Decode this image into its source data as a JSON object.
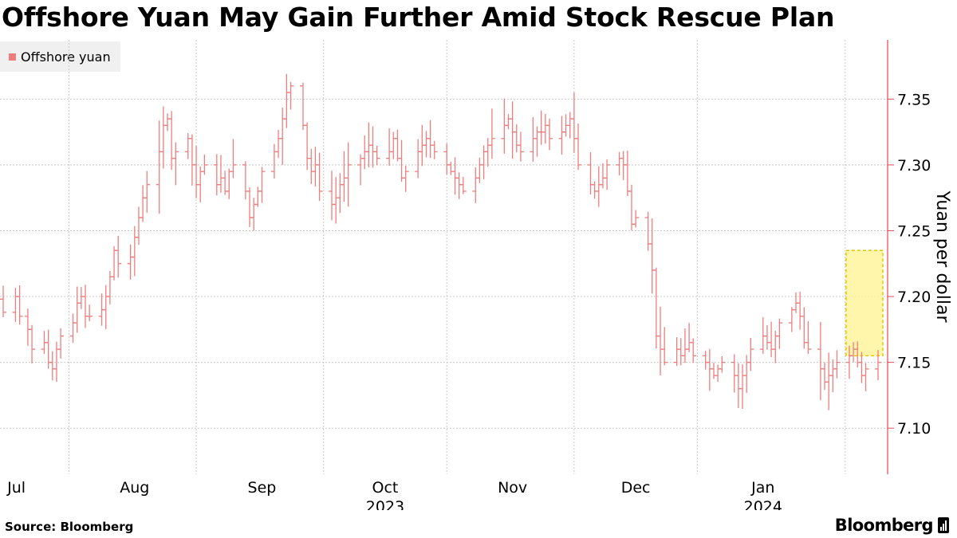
{
  "title": "Offshore Yuan May Gain Further Amid Stock Rescue Plan",
  "source": "Source: Bloomberg",
  "brand": "Bloomberg",
  "brand_icon": "terminal-icon",
  "colors": {
    "series": "#f07d7d",
    "axis": "#e8484f",
    "grid": "#c8c8c8",
    "highlight_fill": "#fff59d",
    "highlight_border": "#e3c800",
    "legend_bg": "#f0f0f0"
  },
  "chart_data": {
    "type": "ohlc",
    "title": "Offshore Yuan May Gain Further Amid Stock Rescue Plan",
    "series_name": "Offshore yuan",
    "ylabel": "Yuan per dollar",
    "ylim": [
      7.065,
      7.395
    ],
    "yticks": [
      "7.10",
      "7.15",
      "7.20",
      "7.25",
      "7.30",
      "7.35"
    ],
    "xlim": [
      "2023-06-30",
      "2024-01-29"
    ],
    "xticks": [
      {
        "date": "2023-07-01",
        "label": "Jul"
      },
      {
        "date": "2023-08-01",
        "label": "Aug"
      },
      {
        "date": "2023-09-01",
        "label": "Sep"
      },
      {
        "date": "2023-10-01",
        "label": "Oct"
      },
      {
        "date": "2023-11-01",
        "label": "Nov"
      },
      {
        "date": "2023-12-01",
        "label": "Dec"
      },
      {
        "date": "2024-01-01",
        "label": "Jan"
      }
    ],
    "year_labels": [
      {
        "date": "2023-10-01",
        "label": "2023"
      },
      {
        "date": "2024-01-01",
        "label": "2024"
      }
    ],
    "gridlines": true,
    "legend": "top-left",
    "highlight": {
      "from": "2024-01-22",
      "to": "2024-01-29",
      "low": 7.155,
      "high": 7.235
    },
    "anchors": [
      [
        "2023-06-30",
        7.188
      ],
      [
        "2023-07-03",
        7.2
      ],
      [
        "2023-07-04",
        7.185
      ],
      [
        "2023-07-06",
        7.175
      ],
      [
        "2023-07-07",
        7.16
      ],
      [
        "2023-07-10",
        7.165
      ],
      [
        "2023-07-11",
        7.15
      ],
      [
        "2023-07-12",
        7.145
      ],
      [
        "2023-07-13",
        7.16
      ],
      [
        "2023-07-14",
        7.17
      ],
      [
        "2023-07-17",
        7.18
      ],
      [
        "2023-07-18",
        7.195
      ],
      [
        "2023-07-19",
        7.2
      ],
      [
        "2023-07-20",
        7.185
      ],
      [
        "2023-07-21",
        7.185
      ],
      [
        "2023-07-24",
        7.19
      ],
      [
        "2023-07-25",
        7.2
      ],
      [
        "2023-07-26",
        7.215
      ],
      [
        "2023-07-27",
        7.235
      ],
      [
        "2023-07-28",
        7.225
      ],
      [
        "2023-07-31",
        7.23
      ],
      [
        "2023-08-01",
        7.245
      ],
      [
        "2023-08-02",
        7.26
      ],
      [
        "2023-08-03",
        7.275
      ],
      [
        "2023-08-04",
        7.285
      ],
      [
        "2023-08-07",
        7.31
      ],
      [
        "2023-08-08",
        7.33
      ],
      [
        "2023-08-09",
        7.335
      ],
      [
        "2023-08-10",
        7.305
      ],
      [
        "2023-08-11",
        7.31
      ],
      [
        "2023-08-14",
        7.32
      ],
      [
        "2023-08-15",
        7.3
      ],
      [
        "2023-08-16",
        7.285
      ],
      [
        "2023-08-17",
        7.295
      ],
      [
        "2023-08-18",
        7.3
      ],
      [
        "2023-08-21",
        7.285
      ],
      [
        "2023-08-22",
        7.29
      ],
      [
        "2023-08-23",
        7.28
      ],
      [
        "2023-08-24",
        7.295
      ],
      [
        "2023-08-25",
        7.3
      ],
      [
        "2023-08-28",
        7.28
      ],
      [
        "2023-08-29",
        7.26
      ],
      [
        "2023-08-30",
        7.27
      ],
      [
        "2023-08-31",
        7.28
      ],
      [
        "2023-09-01",
        7.295
      ],
      [
        "2023-09-04",
        7.31
      ],
      [
        "2023-09-05",
        7.32
      ],
      [
        "2023-09-06",
        7.335
      ],
      [
        "2023-09-07",
        7.355
      ],
      [
        "2023-09-08",
        7.36
      ],
      [
        "2023-09-11",
        7.33
      ],
      [
        "2023-09-12",
        7.305
      ],
      [
        "2023-09-13",
        7.295
      ],
      [
        "2023-09-14",
        7.3
      ],
      [
        "2023-09-15",
        7.28
      ],
      [
        "2023-09-18",
        7.27
      ],
      [
        "2023-09-19",
        7.275
      ],
      [
        "2023-09-20",
        7.285
      ],
      [
        "2023-09-21",
        7.29
      ],
      [
        "2023-09-22",
        7.3
      ],
      [
        "2023-09-25",
        7.305
      ],
      [
        "2023-09-26",
        7.31
      ],
      [
        "2023-09-27",
        7.315
      ],
      [
        "2023-09-28",
        7.31
      ],
      [
        "2023-09-29",
        7.305
      ],
      [
        "2023-10-02",
        7.31
      ],
      [
        "2023-10-03",
        7.32
      ],
      [
        "2023-10-04",
        7.305
      ],
      [
        "2023-10-05",
        7.29
      ],
      [
        "2023-10-06",
        7.295
      ],
      [
        "2023-10-09",
        7.31
      ],
      [
        "2023-10-10",
        7.315
      ],
      [
        "2023-10-11",
        7.32
      ],
      [
        "2023-10-12",
        7.315
      ],
      [
        "2023-10-13",
        7.31
      ],
      [
        "2023-10-16",
        7.3
      ],
      [
        "2023-10-17",
        7.295
      ],
      [
        "2023-10-18",
        7.29
      ],
      [
        "2023-10-19",
        7.285
      ],
      [
        "2023-10-20",
        7.28
      ],
      [
        "2023-10-23",
        7.29
      ],
      [
        "2023-10-24",
        7.3
      ],
      [
        "2023-10-25",
        7.31
      ],
      [
        "2023-10-26",
        7.315
      ],
      [
        "2023-10-27",
        7.32
      ],
      [
        "2023-10-30",
        7.33
      ],
      [
        "2023-10-31",
        7.335
      ],
      [
        "2023-11-01",
        7.325
      ],
      [
        "2023-11-02",
        7.315
      ],
      [
        "2023-11-03",
        7.31
      ],
      [
        "2023-11-06",
        7.32
      ],
      [
        "2023-11-07",
        7.325
      ],
      [
        "2023-11-08",
        7.325
      ],
      [
        "2023-11-09",
        7.33
      ],
      [
        "2023-11-10",
        7.32
      ],
      [
        "2023-11-13",
        7.325
      ],
      [
        "2023-11-14",
        7.33
      ],
      [
        "2023-11-15",
        7.335
      ],
      [
        "2023-11-16",
        7.32
      ],
      [
        "2023-11-17",
        7.3
      ],
      [
        "2023-11-20",
        7.285
      ],
      [
        "2023-11-21",
        7.28
      ],
      [
        "2023-11-22",
        7.285
      ],
      [
        "2023-11-23",
        7.29
      ],
      [
        "2023-11-24",
        7.3
      ],
      [
        "2023-11-27",
        7.305
      ],
      [
        "2023-11-28",
        7.3
      ],
      [
        "2023-11-29",
        7.28
      ],
      [
        "2023-11-30",
        7.255
      ],
      [
        "2023-12-01",
        7.26
      ],
      [
        "2023-12-04",
        7.24
      ],
      [
        "2023-12-05",
        7.22
      ],
      [
        "2023-12-06",
        7.17
      ],
      [
        "2023-12-07",
        7.16
      ],
      [
        "2023-12-08",
        7.15
      ],
      [
        "2023-12-11",
        7.16
      ],
      [
        "2023-12-12",
        7.155
      ],
      [
        "2023-12-13",
        7.16
      ],
      [
        "2023-12-14",
        7.165
      ],
      [
        "2023-12-15",
        7.155
      ],
      [
        "2023-12-18",
        7.15
      ],
      [
        "2023-12-19",
        7.145
      ],
      [
        "2023-12-20",
        7.14
      ],
      [
        "2023-12-21",
        7.145
      ],
      [
        "2023-12-22",
        7.15
      ],
      [
        "2023-12-25",
        7.14
      ],
      [
        "2023-12-26",
        7.13
      ],
      [
        "2023-12-27",
        7.14
      ],
      [
        "2023-12-28",
        7.15
      ],
      [
        "2023-12-29",
        7.16
      ],
      [
        "2024-01-01",
        7.17
      ],
      [
        "2024-01-02",
        7.165
      ],
      [
        "2024-01-03",
        7.16
      ],
      [
        "2024-01-04",
        7.17
      ],
      [
        "2024-01-05",
        7.18
      ],
      [
        "2024-01-08",
        7.19
      ],
      [
        "2024-01-09",
        7.195
      ],
      [
        "2024-01-10",
        7.185
      ],
      [
        "2024-01-11",
        7.165
      ],
      [
        "2024-01-12",
        7.16
      ],
      [
        "2024-01-15",
        7.145
      ],
      [
        "2024-01-16",
        7.135
      ],
      [
        "2024-01-17",
        7.14
      ],
      [
        "2024-01-18",
        7.145
      ],
      [
        "2024-01-19",
        7.15
      ],
      [
        "2024-01-22",
        7.155
      ],
      [
        "2024-01-23",
        7.16
      ],
      [
        "2024-01-24",
        7.15
      ],
      [
        "2024-01-25",
        7.14
      ],
      [
        "2024-01-26",
        7.145
      ],
      [
        "2024-01-29",
        7.15
      ]
    ]
  }
}
